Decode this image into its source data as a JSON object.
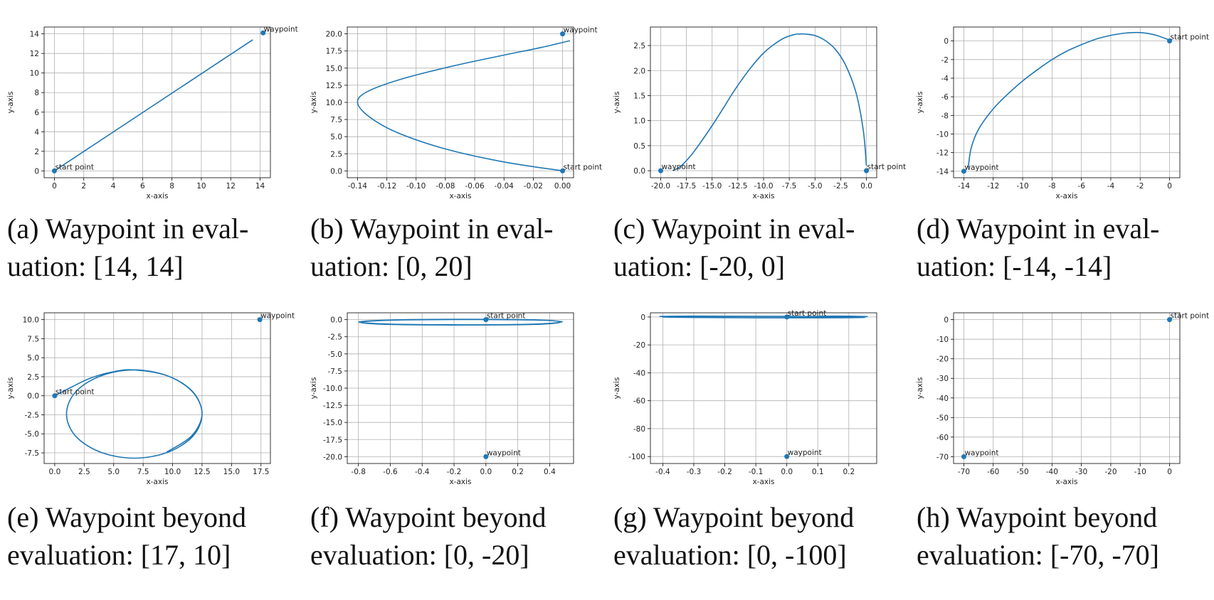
{
  "chart_data": [
    {
      "type": "line",
      "xlabel": "x-axis",
      "ylabel": "y-axis",
      "grid": true,
      "caption": [
        "(a) Waypoint in eval-",
        "uation: [14, 14]"
      ],
      "xlim": [
        -0.7,
        14.7
      ],
      "ylim": [
        -0.7,
        14.7
      ],
      "xticks": [
        0,
        2,
        4,
        6,
        8,
        10,
        12,
        14
      ],
      "yticks": [
        0,
        2,
        4,
        6,
        8,
        10,
        12,
        14
      ],
      "series": [
        {
          "color": "#1f77b4",
          "x": [
            0,
            13.5
          ],
          "y": [
            0,
            13.4
          ]
        }
      ],
      "points": [
        {
          "label": "start point",
          "x": 0,
          "y": 0
        },
        {
          "label": "waypoint",
          "x": 14.2,
          "y": 14.1
        }
      ]
    },
    {
      "type": "line",
      "xlabel": "x-axis",
      "ylabel": "y-axis",
      "grid": true,
      "caption": [
        "(b) Waypoint in eval-",
        "uation: [0, 20]"
      ],
      "xlim": [
        -0.147,
        0.0075
      ],
      "ylim": [
        -1,
        21
      ],
      "xticks": [
        -0.14,
        -0.12,
        {
          "value": -0.1,
          "label": "-0.10"
        },
        -0.08,
        -0.06,
        -0.04,
        -0.02,
        {
          "value": 0,
          "label": "0.00"
        }
      ],
      "yticks": [
        {
          "value": 0,
          "label": "0.0"
        },
        2.5,
        {
          "value": 5,
          "label": "5.0"
        },
        7.5,
        {
          "value": 10,
          "label": "10.0"
        },
        12.5,
        {
          "value": 15,
          "label": "15.0"
        },
        17.5,
        {
          "value": 20,
          "label": "20.0"
        }
      ],
      "series": [
        {
          "color": "#1f77b4",
          "x": [
            0,
            -0.04,
            -0.08,
            -0.113,
            -0.132,
            -0.14,
            -0.133,
            -0.11,
            -0.075,
            -0.04,
            -0.015,
            0.005
          ],
          "y": [
            0,
            1.3,
            3.2,
            5.6,
            7.9,
            10,
            11.6,
            13.4,
            15.3,
            16.9,
            18,
            19
          ]
        }
      ],
      "points": [
        {
          "label": "start point",
          "x": 0,
          "y": 0
        },
        {
          "label": "waypoint",
          "x": 0,
          "y": 20
        }
      ]
    },
    {
      "type": "line",
      "xlabel": "x-axis",
      "ylabel": "y-axis",
      "grid": true,
      "caption": [
        "(c) Waypoint in eval-",
        "uation: [-20, 0]"
      ],
      "xlim": [
        -21,
        1
      ],
      "ylim": [
        -0.14,
        2.87
      ],
      "xticks": [
        {
          "value": -20,
          "label": "-20.0"
        },
        -17.5,
        {
          "value": -15,
          "label": "-15.0"
        },
        -12.5,
        {
          "value": -10,
          "label": "-10.0"
        },
        -7.5,
        {
          "value": -5,
          "label": "-5.0"
        },
        -2.5,
        {
          "value": 0,
          "label": "0.0"
        }
      ],
      "yticks": [
        {
          "value": 0,
          "label": "0.0"
        },
        0.5,
        {
          "value": 1,
          "label": "1.0"
        },
        1.5,
        {
          "value": 2,
          "label": "2.0"
        },
        2.5
      ],
      "series": [
        {
          "color": "#1f77b4",
          "x": [
            0,
            -0.3,
            -1,
            -2,
            -3,
            -4,
            -5,
            -6,
            -6.5,
            -7,
            -8,
            -9,
            -10,
            -11,
            -12,
            -13,
            -14,
            -15,
            -16,
            -17,
            -18,
            -18.8
          ],
          "y": [
            0.1,
            0.8,
            1.55,
            2.1,
            2.42,
            2.6,
            2.7,
            2.73,
            2.73,
            2.72,
            2.65,
            2.52,
            2.35,
            2.12,
            1.85,
            1.55,
            1.22,
            0.9,
            0.6,
            0.32,
            0.1,
            0
          ]
        }
      ],
      "points": [
        {
          "label": "start point",
          "x": 0,
          "y": 0
        },
        {
          "label": "waypoint",
          "x": -20,
          "y": 0
        }
      ]
    },
    {
      "type": "line",
      "xlabel": "x-axis",
      "ylabel": "y-axis",
      "grid": true,
      "caption": [
        "(d) Waypoint in eval-",
        "uation: [-14, -14]"
      ],
      "xlim": [
        -14.7,
        0.7
      ],
      "ylim": [
        -14.7,
        1.5
      ],
      "xticks": [
        -14,
        -12,
        -10,
        -8,
        -6,
        -4,
        -2,
        0
      ],
      "yticks": [
        -14,
        -12,
        -10,
        -8,
        -6,
        -4,
        -2,
        0
      ],
      "series": [
        {
          "color": "#1f77b4",
          "x": [
            0,
            -1,
            -2,
            -3,
            -4,
            -5,
            -6,
            -7,
            -8,
            -9,
            -10,
            -11,
            -12,
            -13,
            -13.5,
            -13.7
          ],
          "y": [
            0.1,
            0.65,
            0.9,
            0.85,
            0.6,
            0.2,
            -0.4,
            -1.1,
            -2,
            -3.1,
            -4.3,
            -5.7,
            -7.3,
            -9.5,
            -11.5,
            -13.6
          ]
        }
      ],
      "points": [
        {
          "label": "start point",
          "x": 0,
          "y": 0
        },
        {
          "label": "waypoint",
          "x": -14,
          "y": -14
        }
      ]
    },
    {
      "type": "line",
      "xlabel": "x-axis",
      "ylabel": "y-axis",
      "grid": true,
      "caption": [
        "(e) Waypoint beyond",
        "evaluation: [17, 10]"
      ],
      "xlim": [
        -0.9,
        18.3
      ],
      "ylim": [
        -8.9,
        10.9
      ],
      "xticks": [
        {
          "value": 0,
          "label": "0.0"
        },
        2.5,
        {
          "value": 5,
          "label": "5.0"
        },
        7.5,
        {
          "value": 10,
          "label": "10.0"
        },
        12.5,
        {
          "value": 15,
          "label": "15.0"
        },
        17.5
      ],
      "yticks": [
        -7.5,
        {
          "value": -5,
          "label": "-5.0"
        },
        -2.5,
        {
          "value": 0,
          "label": "0.0"
        },
        2.5,
        {
          "value": 5,
          "label": "5.0"
        },
        7.5,
        {
          "value": 10,
          "label": "10.0"
        }
      ],
      "series": [
        {
          "color": "#1f77b4",
          "x": [
            0,
            1.5,
            3,
            4.8,
            6.7,
            9.6,
            11.73,
            12.5,
            11.73,
            9.6,
            6.75,
            3.9,
            1.77,
            1,
            1.77,
            3.9,
            6.75,
            9.6,
            11.7,
            12.5,
            11.6,
            9.5
          ],
          "y": [
            0,
            1.2,
            2.3,
            3.1,
            3.4,
            2.6,
            0.5,
            -2.4,
            -5.3,
            -7.42,
            -8.2,
            -7.42,
            -5.3,
            -2.4,
            0.5,
            2.6,
            3.4,
            2.6,
            0.5,
            -2.4,
            -5.3,
            -7.4
          ]
        }
      ],
      "points": [
        {
          "label": "start point",
          "x": 0,
          "y": 0
        },
        {
          "label": "waypoint",
          "x": 17.4,
          "y": 10
        }
      ]
    },
    {
      "type": "line",
      "xlabel": "x-axis",
      "ylabel": "y-axis",
      "grid": true,
      "caption": [
        "(f) Waypoint beyond",
        "evaluation: [0, -20]"
      ],
      "xlim": [
        -0.87,
        0.55
      ],
      "ylim": [
        -21,
        1
      ],
      "xticks": [
        -0.8,
        -0.6,
        -0.4,
        -0.2,
        {
          "value": 0,
          "label": "0.0"
        },
        0.2,
        0.4
      ],
      "yticks": [
        {
          "value": 0,
          "label": "0.0"
        },
        -2.5,
        {
          "value": -5,
          "label": "-5.0"
        },
        -7.5,
        {
          "value": -10,
          "label": "-10.0"
        },
        -12.5,
        {
          "value": -15,
          "label": "-15.0"
        },
        -17.5,
        {
          "value": -20,
          "label": "-20.0"
        }
      ],
      "series": [
        {
          "color": "#1f77b4",
          "x": [
            0,
            0.3,
            0.48,
            0.3,
            -0.16,
            -0.6,
            -0.8,
            -0.6,
            -0.16,
            0.3,
            0.47,
            0.3,
            -0.16,
            -0.6,
            -0.79,
            -0.6,
            -0.16,
            0.25
          ],
          "y": [
            0,
            -0.05,
            -0.3,
            -0.65,
            -0.75,
            -0.65,
            -0.35,
            -0.05,
            0.05,
            -0.02,
            -0.35,
            -0.7,
            -0.78,
            -0.7,
            -0.4,
            -0.08,
            0.02,
            0
          ]
        }
      ],
      "points": [
        {
          "label": "start point",
          "x": 0,
          "y": 0
        },
        {
          "label": "waypoint",
          "x": 0,
          "y": -20
        }
      ]
    },
    {
      "type": "line",
      "xlabel": "x-axis",
      "ylabel": "y-axis",
      "grid": true,
      "caption": [
        "(g) Waypoint beyond",
        "evaluation: [0, -100]"
      ],
      "xlim": [
        -0.44,
        0.29
      ],
      "ylim": [
        -105,
        3
      ],
      "xticks": [
        -0.4,
        -0.3,
        -0.2,
        -0.1,
        {
          "value": 0,
          "label": "0.0"
        },
        0.1,
        0.2
      ],
      "yticks": [
        -100,
        -80,
        -60,
        -40,
        -20,
        0
      ],
      "series": [
        {
          "color": "#1f77b4",
          "x": [
            0,
            0.15,
            0.26,
            0.15,
            -0.1,
            -0.3,
            -0.41,
            -0.3,
            -0.1,
            0.15,
            0.25,
            0.1,
            -0.2,
            -0.4,
            -0.25,
            0
          ],
          "y": [
            0,
            0.6,
            0.2,
            -0.5,
            -0.6,
            -0.3,
            0.3,
            0.6,
            0.5,
            0.2,
            -0.3,
            -0.6,
            -0.5,
            0,
            0.5,
            0.4
          ]
        }
      ],
      "points": [
        {
          "label": "start point",
          "x": 0,
          "y": 0
        },
        {
          "label": "waypoint",
          "x": 0,
          "y": -100
        }
      ]
    },
    {
      "type": "line",
      "xlabel": "x-axis",
      "ylabel": "y-axis",
      "grid": true,
      "caption": [
        "(h) Waypoint beyond",
        "evaluation: [-70, -70]"
      ],
      "xlim": [
        -73.5,
        3.5
      ],
      "ylim": [
        -73.5,
        3.5
      ],
      "xticks": [
        -70,
        -60,
        -50,
        -40,
        -30,
        -20,
        -10,
        0
      ],
      "yticks": [
        -70,
        -60,
        -50,
        -40,
        -30,
        -20,
        -10,
        0
      ],
      "series": [
        {
          "color": "#1f77b4",
          "x": [
            0,
            0.3,
            -0.2,
            0.1
          ],
          "y": [
            0,
            0.2,
            -0.2,
            0
          ]
        }
      ],
      "points": [
        {
          "label": "start point",
          "x": 0,
          "y": 0
        },
        {
          "label": "waypoint",
          "x": -70,
          "y": -70
        }
      ]
    }
  ]
}
